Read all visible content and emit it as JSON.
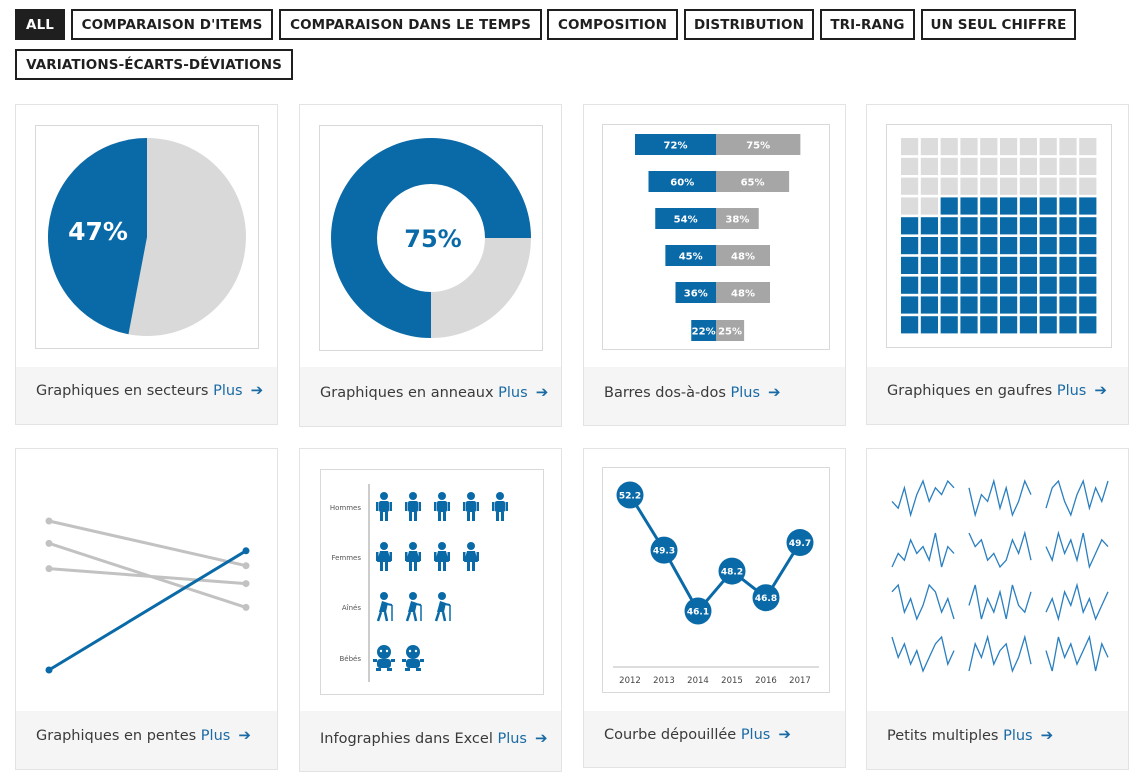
{
  "filters": [
    {
      "label": "ALL",
      "active": true
    },
    {
      "label": "COMPARAISON D'ITEMS",
      "active": false
    },
    {
      "label": "COMPARAISON DANS LE TEMPS",
      "active": false
    },
    {
      "label": "COMPOSITION",
      "active": false
    },
    {
      "label": "DISTRIBUTION",
      "active": false
    },
    {
      "label": "TRI-RANG",
      "active": false
    },
    {
      "label": "UN SEUL CHIFFRE",
      "active": false
    },
    {
      "label": "VARIATIONS-ÉCARTS-DÉVIATIONS",
      "active": false
    }
  ],
  "cards": [
    {
      "title": "Graphiques en secteurs",
      "more": "Plus",
      "arrow": "➔"
    },
    {
      "title": "Graphiques en anneaux",
      "more": "Plus",
      "arrow": "➔"
    },
    {
      "title": "Barres dos-à-dos",
      "more": "Plus",
      "arrow": "➔"
    },
    {
      "title": "Graphiques en gaufres",
      "more": "Plus",
      "arrow": "➔"
    },
    {
      "title": "Graphiques en pentes",
      "more": "Plus",
      "arrow": "➔"
    },
    {
      "title": "Infographies dans Excel",
      "more": "Plus",
      "arrow": "➔"
    },
    {
      "title": "Courbe dépouillée",
      "more": "Plus",
      "arrow": "➔"
    },
    {
      "title": "Petits multiples",
      "more": "Plus",
      "arrow": "➔"
    }
  ],
  "colors": {
    "blue": "#0a6aa8",
    "grey": "#d9d9d9",
    "bar_grey": "#a6a6a6",
    "line_grey": "#c2c2c2"
  },
  "chart_data": [
    {
      "type": "pie",
      "labels": [
        "",
        ""
      ],
      "values": [
        47,
        53
      ],
      "data_label": "47%"
    },
    {
      "type": "pie",
      "donut": true,
      "values": [
        75,
        25
      ],
      "data_label": "75%"
    },
    {
      "type": "bar",
      "orientation": "back-to-back",
      "series": [
        {
          "values": [
            72,
            60,
            54,
            45,
            36,
            22
          ],
          "labels": [
            "72%",
            "60%",
            "54%",
            "45%",
            "36%",
            "22%"
          ]
        },
        {
          "values": [
            75,
            65,
            38,
            48,
            48,
            25
          ],
          "labels": [
            "75%",
            "65%",
            "38%",
            "48%",
            "48%",
            "25%"
          ]
        }
      ]
    },
    {
      "type": "waffle",
      "total": 100,
      "filled": 68,
      "columns": 10
    },
    {
      "type": "line",
      "style": "slope",
      "series": [
        {
          "color": "grey",
          "values": [
            10,
            7
          ]
        },
        {
          "color": "grey",
          "values": [
            8.5,
            4.2
          ]
        },
        {
          "color": "grey",
          "values": [
            6.8,
            5.8
          ]
        },
        {
          "color": "blue",
          "values": [
            0,
            8
          ]
        }
      ]
    },
    {
      "type": "pictogram",
      "categories": [
        "Hommes",
        "Femmes",
        "Aînés",
        "Bébés"
      ],
      "values": [
        5,
        4,
        3,
        2
      ],
      "icons": [
        "man-icon",
        "woman-icon",
        "elder-icon",
        "baby-icon"
      ]
    },
    {
      "type": "line",
      "categories": [
        "2012",
        "2013",
        "2014",
        "2015",
        "2016",
        "2017"
      ],
      "values": [
        52.2,
        49.3,
        46.1,
        48.2,
        46.8,
        49.7
      ],
      "labels": [
        "52.2",
        "49.3",
        "46.1",
        "48.2",
        "46.8",
        "49.7"
      ]
    },
    {
      "type": "line",
      "style": "small-multiples",
      "panels": 12,
      "series": [
        [
          3,
          2,
          5,
          1,
          4,
          6,
          3,
          5,
          4,
          6,
          5
        ],
        [
          5,
          1,
          4,
          3,
          6,
          2,
          5,
          1,
          3,
          6,
          4
        ],
        [
          2,
          5,
          6,
          3,
          1,
          4,
          6,
          2,
          5,
          3,
          6
        ],
        [
          1,
          3,
          2,
          5,
          3,
          4,
          2,
          6,
          1,
          4,
          3
        ],
        [
          6,
          4,
          5,
          2,
          3,
          1,
          2,
          5,
          3,
          6,
          2
        ],
        [
          4,
          2,
          6,
          3,
          5,
          2,
          6,
          1,
          3,
          5,
          4
        ],
        [
          5,
          6,
          2,
          4,
          1,
          3,
          6,
          5,
          2,
          4,
          1
        ],
        [
          3,
          6,
          1,
          4,
          2,
          5,
          1,
          6,
          3,
          2,
          5
        ],
        [
          2,
          4,
          1,
          5,
          3,
          6,
          2,
          4,
          1,
          3,
          5
        ],
        [
          6,
          3,
          5,
          2,
          4,
          1,
          3,
          5,
          6,
          2,
          4
        ],
        [
          1,
          5,
          3,
          6,
          2,
          4,
          5,
          1,
          3,
          6,
          2
        ],
        [
          4,
          1,
          6,
          3,
          5,
          2,
          4,
          6,
          1,
          5,
          3
        ]
      ]
    }
  ]
}
